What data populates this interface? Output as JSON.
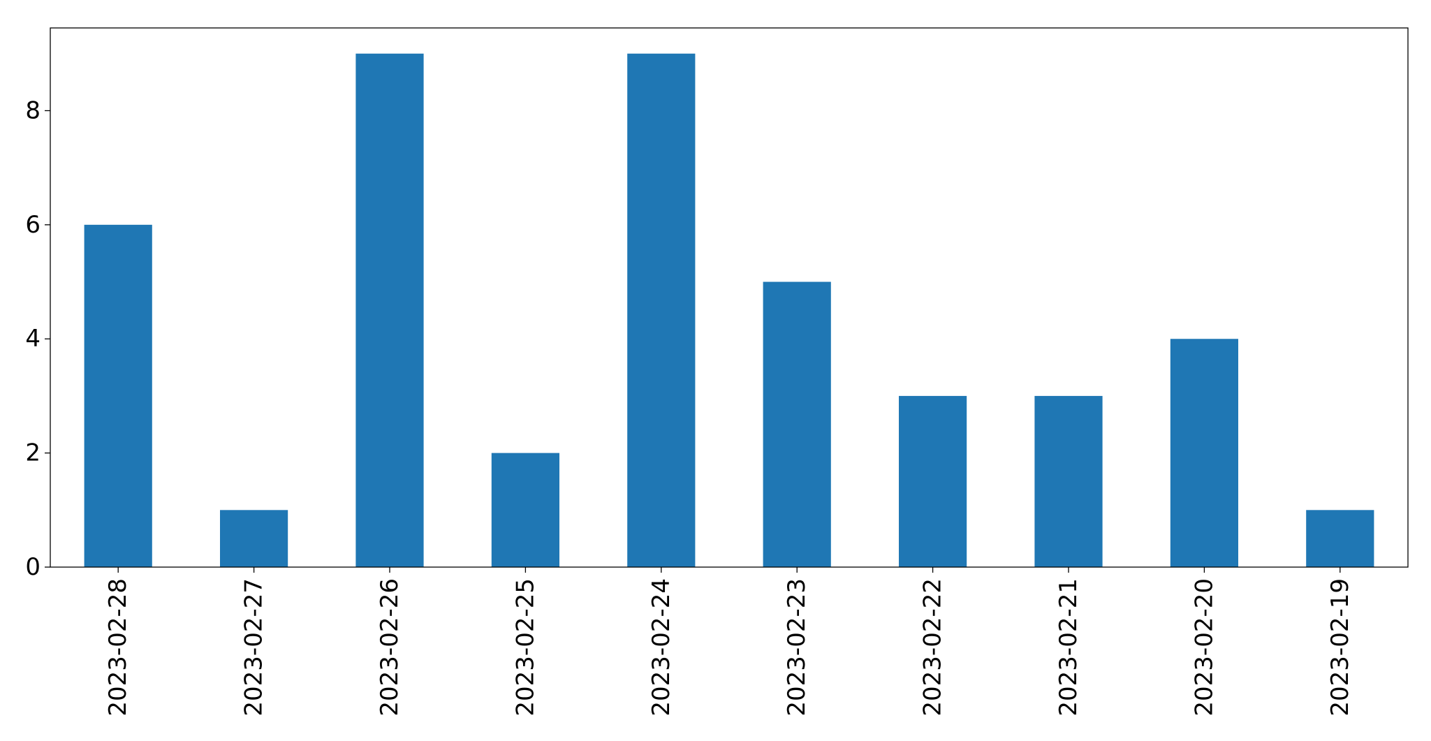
{
  "chart_data": {
    "type": "bar",
    "title": "",
    "xlabel": "",
    "ylabel": "",
    "categories": [
      "2023-02-28",
      "2023-02-27",
      "2023-02-26",
      "2023-02-25",
      "2023-02-24",
      "2023-02-23",
      "2023-02-22",
      "2023-02-21",
      "2023-02-20",
      "2023-02-19"
    ],
    "values": [
      6,
      1,
      9,
      2,
      9,
      5,
      3,
      3,
      4,
      1
    ],
    "ylim": [
      0,
      9.45
    ],
    "yticks": [
      0,
      2,
      4,
      6,
      8
    ],
    "ytick_labels": [
      "0",
      "2",
      "4",
      "6",
      "8"
    ],
    "grid": false,
    "legend": "none",
    "bar_color": "#1f77b4"
  }
}
